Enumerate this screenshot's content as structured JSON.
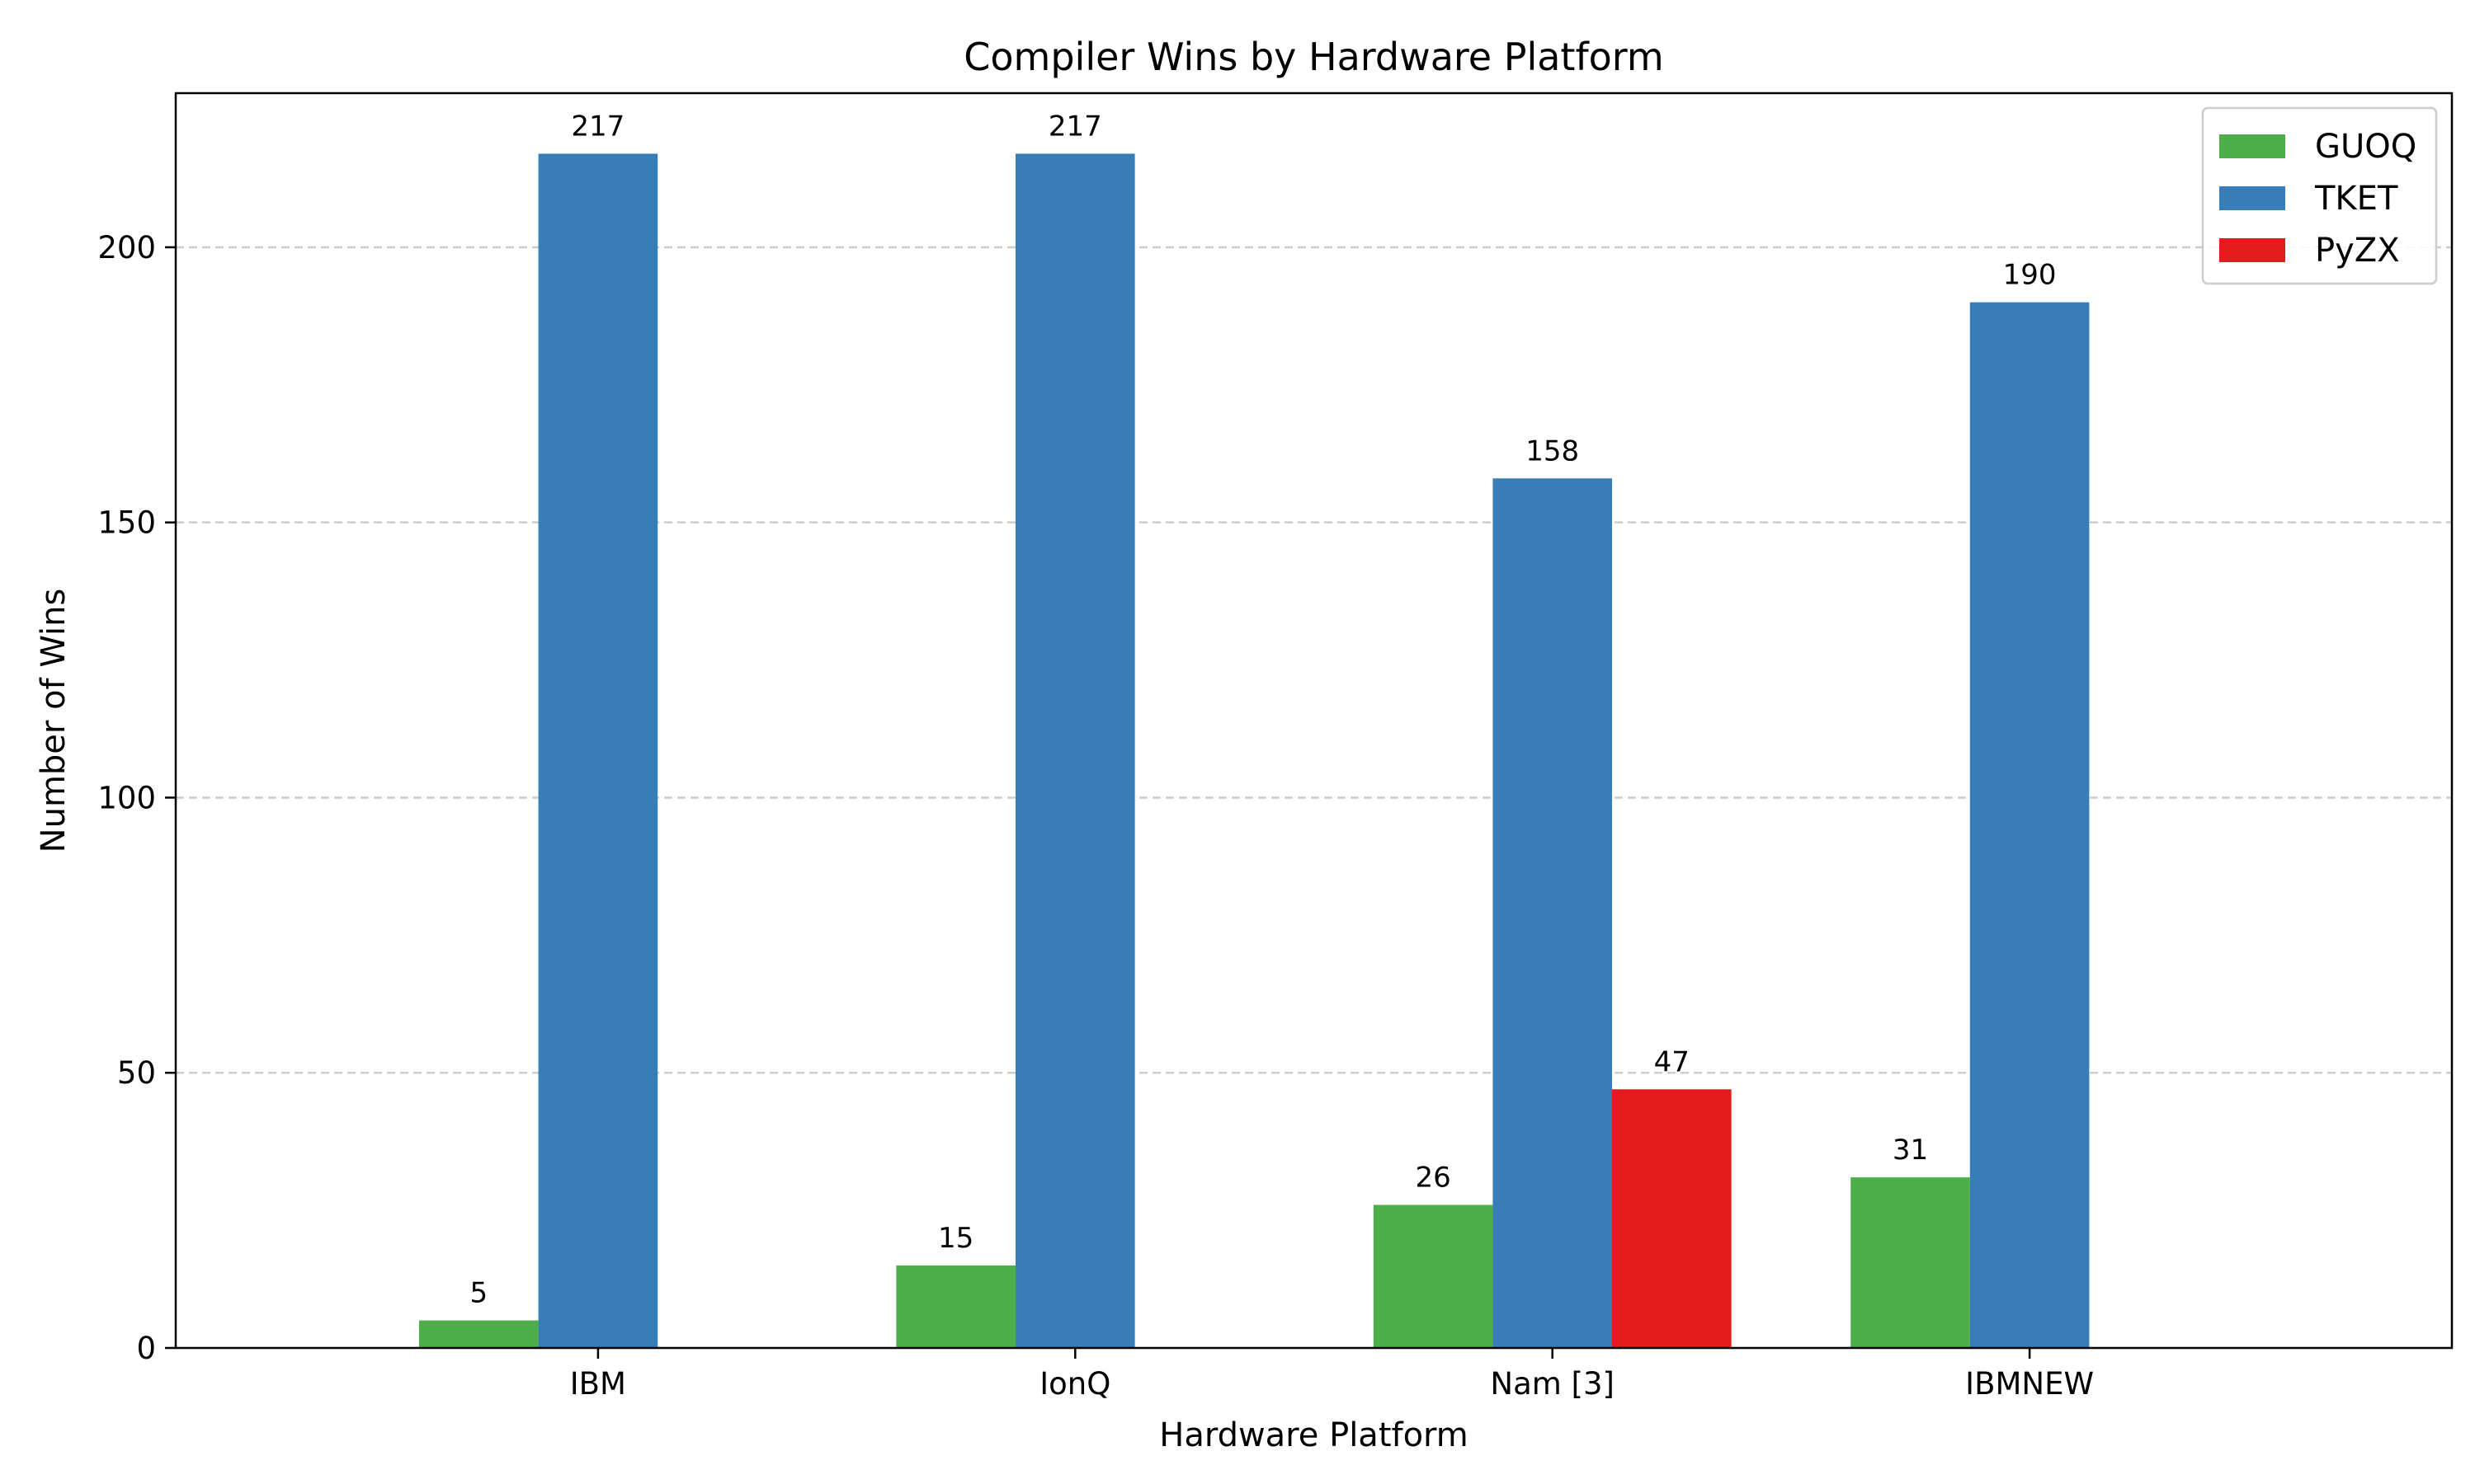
{
  "chart_data": {
    "type": "bar",
    "title": "Compiler Wins by Hardware Platform",
    "xlabel": "Hardware Platform",
    "ylabel": "Number of Wins",
    "categories": [
      "IBM",
      "IonQ",
      "Nam [3]",
      "IBMNEW"
    ],
    "series": [
      {
        "name": "GUOQ",
        "color": "#4daf4a",
        "values": [
          5,
          15,
          26,
          31
        ]
      },
      {
        "name": "TKET",
        "color": "#377eb8",
        "values": [
          217,
          217,
          158,
          190
        ]
      },
      {
        "name": "PyZX",
        "color": "#e41a1c",
        "values": [
          0,
          0,
          47,
          0
        ]
      }
    ],
    "ylim": [
      0,
      228
    ],
    "yticks": [
      0,
      50,
      100,
      150,
      200
    ],
    "grid": "horizontal-dashed",
    "legend_position": "top-right"
  }
}
